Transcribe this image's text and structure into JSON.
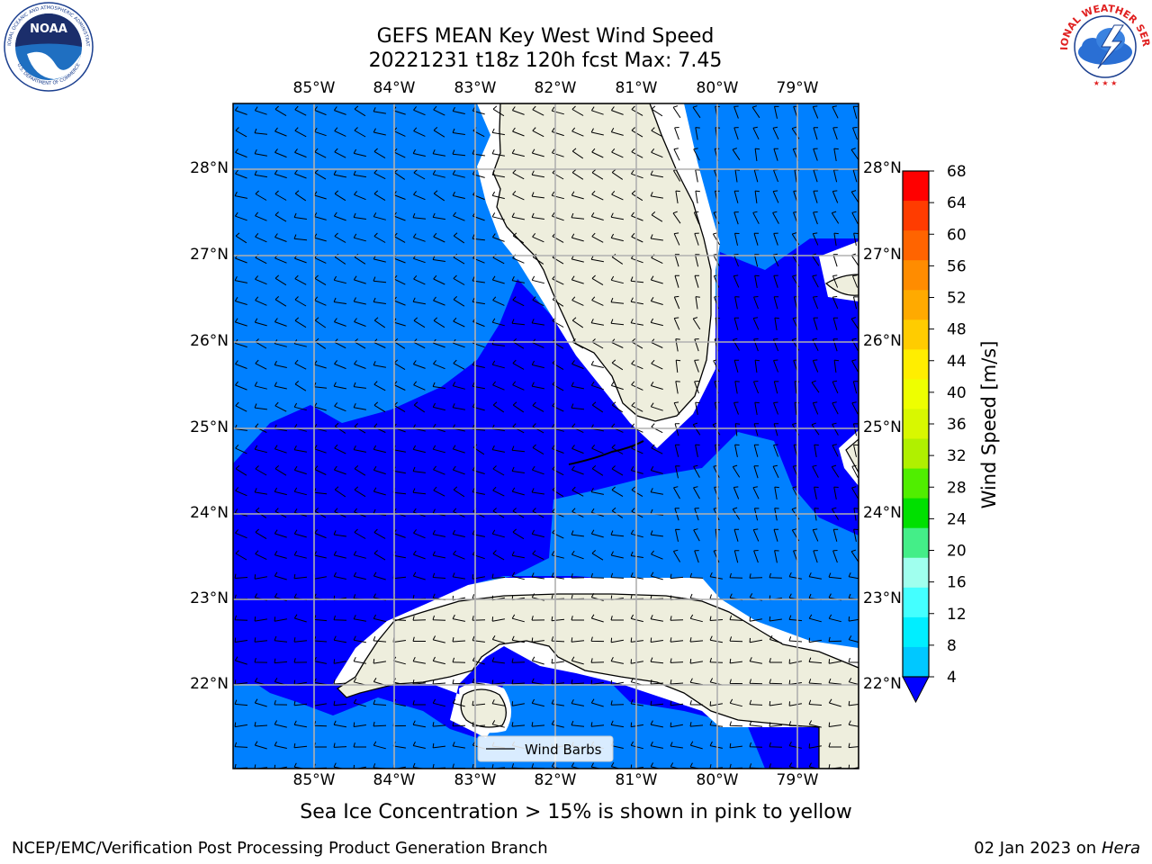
{
  "title": {
    "line1": "GEFS MEAN Key West Wind Speed",
    "line2": "20221231 t18z 120h fcst   Max: 7.45"
  },
  "axes": {
    "lon_labels": [
      "85°W",
      "84°W",
      "83°W",
      "82°W",
      "81°W",
      "80°W",
      "79°W"
    ],
    "lat_labels": [
      "28°N",
      "27°N",
      "26°N",
      "25°N",
      "24°N",
      "23°N",
      "22°N"
    ]
  },
  "legend": {
    "label": "Wind Barbs"
  },
  "colorbar": {
    "label": "Wind Speed [m/s]",
    "ticks": [
      "68",
      "64",
      "60",
      "56",
      "52",
      "48",
      "44",
      "40",
      "36",
      "32",
      "28",
      "24",
      "20",
      "16",
      "12",
      "8",
      "4"
    ],
    "colors": [
      "#ff0000",
      "#ff3c00",
      "#ff6400",
      "#ff8c00",
      "#ffaa00",
      "#ffcc00",
      "#ffee00",
      "#eeff00",
      "#d8f800",
      "#b0f000",
      "#50ee00",
      "#00e000",
      "#44ee88",
      "#a0ffee",
      "#44ffff",
      "#00eeff",
      "#00c8ff",
      "#0080ff"
    ],
    "underflow_color": "#0000ff"
  },
  "map_colors": {
    "ocean_light": "#0080ff",
    "ocean_dark": "#0000ff",
    "land": "#eeeedd",
    "grid": "#b0b0b0"
  },
  "caption": "Sea Ice Concentration > 15% is shown in pink to yellow",
  "footer": {
    "left": "NCEP/EMC/Verification Post Processing Product Generation Branch",
    "right_date": "02 Jan 2023 on ",
    "right_host": "Hera"
  },
  "logos": {
    "noaa": {
      "text": "NOAA",
      "ring_top": "NATIONAL OCEANIC AND ATMOSPHERIC ADMINISTRATION",
      "ring_bottom": "U.S. DEPARTMENT OF COMMERCE"
    },
    "nws": {
      "ring_text": "NATIONAL WEATHER SERVICE"
    }
  }
}
